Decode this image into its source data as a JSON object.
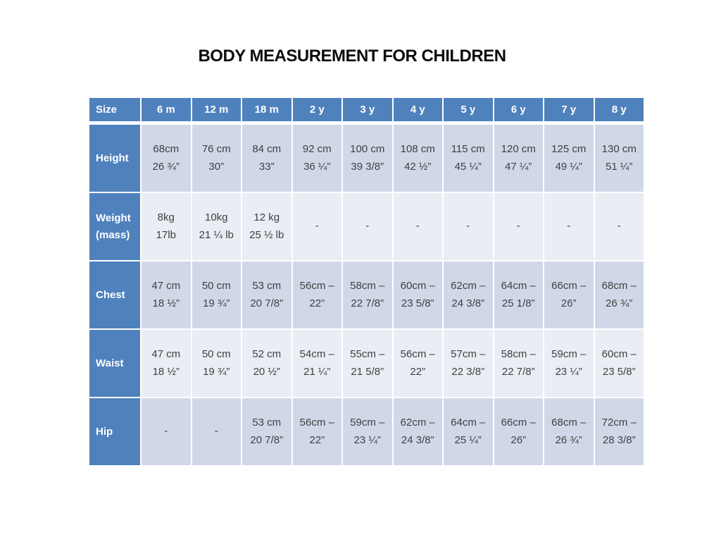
{
  "title": "BODY MEASUREMENT FOR CHILDREN",
  "colors": {
    "header_bg": "#4f81bd",
    "band_dark": "#d0d8e8",
    "band_light": "#e9edf4",
    "header_text": "#ffffff",
    "cell_text": "#404040",
    "title_text": "#0d0d0d",
    "gridline": "#ffffff"
  },
  "table": {
    "columns": [
      "Size",
      "6 m",
      "12 m",
      "18 m",
      "2 y",
      "3 y",
      "4 y",
      "5 y",
      "6 y",
      "7 y",
      "8 y"
    ],
    "rows": [
      {
        "label": [
          "Height"
        ],
        "cells": [
          [
            "68cm",
            "26 ¾”"
          ],
          [
            "76 cm",
            "30”"
          ],
          [
            "84 cm",
            "33”"
          ],
          [
            "92 cm",
            "36 ¼”"
          ],
          [
            "100 cm",
            "39 3/8”"
          ],
          [
            "108 cm",
            "42 ½”"
          ],
          [
            "115 cm",
            "45 ¼”"
          ],
          [
            "120 cm",
            "47 ¼”"
          ],
          [
            "125 cm",
            "49 ¼”"
          ],
          [
            "130 cm",
            "51 ¼”"
          ]
        ]
      },
      {
        "label": [
          "Weight",
          "(mass)"
        ],
        "cells": [
          [
            "8kg",
            "17lb"
          ],
          [
            "10kg",
            "21 ¼ lb"
          ],
          [
            "12 kg",
            "25 ½ lb"
          ],
          [
            "-"
          ],
          [
            "-"
          ],
          [
            "-"
          ],
          [
            "-"
          ],
          [
            "-"
          ],
          [
            "-"
          ],
          [
            "-"
          ]
        ]
      },
      {
        "label": [
          "Chest"
        ],
        "cells": [
          [
            "47 cm",
            "18 ½”"
          ],
          [
            "50 cm",
            "19 ¾”"
          ],
          [
            "53 cm",
            "20 7/8”"
          ],
          [
            "56cm –",
            "22”"
          ],
          [
            "58cm –",
            "22 7/8”"
          ],
          [
            "60cm –",
            "23 5/8”"
          ],
          [
            "62cm –",
            "24 3/8”"
          ],
          [
            "64cm –",
            "25 1/8”"
          ],
          [
            "66cm –",
            "26”"
          ],
          [
            "68cm –",
            "26 ¾”"
          ]
        ]
      },
      {
        "label": [
          "Waist"
        ],
        "cells": [
          [
            "47 cm",
            "18 ½”"
          ],
          [
            "50 cm",
            "19 ¾”"
          ],
          [
            "52 cm",
            "20 ½”"
          ],
          [
            "54cm –",
            "21 ¼”"
          ],
          [
            "55cm –",
            "21 5/8”"
          ],
          [
            "56cm –",
            "22”"
          ],
          [
            "57cm –",
            "22 3/8”"
          ],
          [
            "58cm –",
            "22 7/8”"
          ],
          [
            "59cm –",
            "23 ¼”"
          ],
          [
            "60cm –",
            "23 5/8”"
          ]
        ]
      },
      {
        "label": [
          "Hip"
        ],
        "cells": [
          [
            "-"
          ],
          [
            "-"
          ],
          [
            "53 cm",
            "20 7/8”"
          ],
          [
            "56cm –",
            "22”"
          ],
          [
            "59cm –",
            "23 ¼”"
          ],
          [
            "62cm –",
            "24 3/8”"
          ],
          [
            "64cm –",
            "25 ¼”"
          ],
          [
            "66cm –",
            "26”"
          ],
          [
            "68cm –",
            "26 ¾”"
          ],
          [
            "72cm –",
            "28 3/8”"
          ]
        ]
      }
    ]
  }
}
